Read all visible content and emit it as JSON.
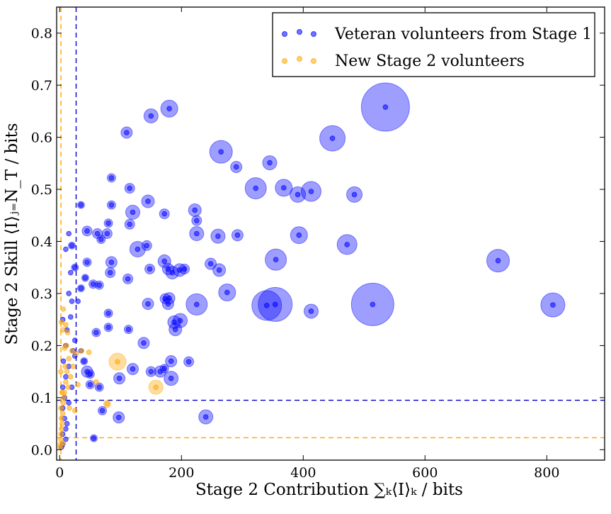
{
  "chart_data": {
    "type": "scatter",
    "title": "",
    "xlabel": "Stage 2 Contribution ∑ₖ⟨I⟩ₖ / bits",
    "ylabel": "Stage 2 Skill ⟨I⟩ⱼ₌N_T / bits",
    "xlim": [
      -5,
      895
    ],
    "ylim": [
      -0.02,
      0.85
    ],
    "xticks": [
      0,
      200,
      400,
      600,
      800
    ],
    "yticks": [
      0.0,
      0.1,
      0.2,
      0.3,
      0.4,
      0.5,
      0.6,
      0.7,
      0.8
    ],
    "xtick_labels": [
      "0",
      "200",
      "400",
      "600",
      "800"
    ],
    "ytick_labels": [
      "0.0",
      "0.1",
      "0.2",
      "0.3",
      "0.4",
      "0.5",
      "0.6",
      "0.7",
      "0.8"
    ],
    "grid": false,
    "legend_position": "top-right",
    "reference_lines": [
      {
        "series": "Veteran volunteers from Stage 1",
        "orientation": "vertical",
        "value": 27,
        "color": "#0000cc"
      },
      {
        "series": "Veteran volunteers from Stage 1",
        "orientation": "horizontal",
        "value": 0.095,
        "color": "#0000cc"
      },
      {
        "series": "New Stage 2 volunteers",
        "orientation": "vertical",
        "value": 2,
        "color": "#ffa500"
      },
      {
        "series": "New Stage 2 volunteers",
        "orientation": "horizontal",
        "value": 0.023,
        "color": "#ffa500"
      }
    ],
    "series": [
      {
        "name": "Veteran volunteers from Stage 1",
        "color": "#0000ff",
        "marker": "circle-with-size-halo",
        "points": [
          [
            535,
            0.658
          ],
          [
            180,
            0.655
          ],
          [
            150,
            0.641
          ],
          [
            110,
            0.609
          ],
          [
            448,
            0.598
          ],
          [
            265,
            0.572
          ],
          [
            290,
            0.543
          ],
          [
            345,
            0.551
          ],
          [
            85,
            0.522
          ],
          [
            322,
            0.502
          ],
          [
            368,
            0.503
          ],
          [
            391,
            0.49
          ],
          [
            413,
            0.496
          ],
          [
            484,
            0.49
          ],
          [
            115,
            0.502
          ],
          [
            120,
            0.456
          ],
          [
            145,
            0.477
          ],
          [
            172,
            0.453
          ],
          [
            222,
            0.46
          ],
          [
            225,
            0.44
          ],
          [
            35,
            0.47
          ],
          [
            85,
            0.47
          ],
          [
            80,
            0.435
          ],
          [
            115,
            0.433
          ],
          [
            45,
            0.42
          ],
          [
            62,
            0.415
          ],
          [
            78,
            0.415
          ],
          [
            68,
            0.404
          ],
          [
            225,
            0.415
          ],
          [
            260,
            0.41
          ],
          [
            292,
            0.412
          ],
          [
            393,
            0.412
          ],
          [
            472,
            0.394
          ],
          [
            128,
            0.385
          ],
          [
            143,
            0.392
          ],
          [
            15,
            0.415
          ],
          [
            20,
            0.392
          ],
          [
            10,
            0.385
          ],
          [
            355,
            0.365
          ],
          [
            720,
            0.363
          ],
          [
            172,
            0.362
          ],
          [
            248,
            0.357
          ],
          [
            262,
            0.345
          ],
          [
            85,
            0.36
          ],
          [
            45,
            0.36
          ],
          [
            148,
            0.347
          ],
          [
            178,
            0.347
          ],
          [
            185,
            0.34
          ],
          [
            197,
            0.345
          ],
          [
            205,
            0.347
          ],
          [
            25,
            0.35
          ],
          [
            83,
            0.34
          ],
          [
            112,
            0.328
          ],
          [
            18,
            0.34
          ],
          [
            275,
            0.302
          ],
          [
            65,
            0.316
          ],
          [
            42,
            0.33
          ],
          [
            55,
            0.318
          ],
          [
            35,
            0.31
          ],
          [
            15,
            0.3
          ],
          [
            180,
            0.291
          ],
          [
            178,
            0.28
          ],
          [
            173,
            0.29
          ],
          [
            145,
            0.28
          ],
          [
            225,
            0.279
          ],
          [
            340,
            0.277
          ],
          [
            354,
            0.279
          ],
          [
            514,
            0.279
          ],
          [
            810,
            0.278
          ],
          [
            413,
            0.266
          ],
          [
            30,
            0.285
          ],
          [
            20,
            0.285
          ],
          [
            80,
            0.262
          ],
          [
            198,
            0.248
          ],
          [
            188,
            0.245
          ],
          [
            190,
            0.231
          ],
          [
            80,
            0.235
          ],
          [
            113,
            0.231
          ],
          [
            60,
            0.225
          ],
          [
            18,
            0.255
          ],
          [
            25,
            0.21
          ],
          [
            138,
            0.205
          ],
          [
            212,
            0.169
          ],
          [
            183,
            0.17
          ],
          [
            172,
            0.156
          ],
          [
            165,
            0.15
          ],
          [
            150,
            0.15
          ],
          [
            183,
            0.137
          ],
          [
            120,
            0.155
          ],
          [
            98,
            0.137
          ],
          [
            50,
            0.145
          ],
          [
            50,
            0.125
          ],
          [
            40,
            0.17
          ],
          [
            45,
            0.15
          ],
          [
            65,
            0.12
          ],
          [
            35,
            0.19
          ],
          [
            10,
            0.2
          ],
          [
            15,
            0.16
          ],
          [
            25,
            0.18
          ],
          [
            10,
            0.14
          ],
          [
            5,
            0.12
          ],
          [
            20,
            0.12
          ],
          [
            8,
            0.1
          ],
          [
            15,
            0.09
          ],
          [
            70,
            0.075
          ],
          [
            97,
            0.062
          ],
          [
            240,
            0.063
          ],
          [
            56,
            0.022
          ],
          [
            5,
            0.08
          ],
          [
            8,
            0.06
          ],
          [
            12,
            0.05
          ],
          [
            10,
            0.04
          ],
          [
            5,
            0.03
          ],
          [
            10,
            0.02
          ],
          [
            5,
            0.01
          ],
          [
            3,
            0.005
          ],
          [
            12,
            0.23
          ],
          [
            5,
            0.25
          ],
          [
            22,
            0.19
          ],
          [
            6,
            0.17
          ]
        ],
        "sizes": [
          34,
          12,
          10,
          8,
          18,
          16,
          8,
          10,
          6,
          15,
          12,
          11,
          14,
          11,
          7,
          10,
          9,
          7,
          9,
          7,
          5,
          6,
          6,
          7,
          7,
          7,
          7,
          6,
          10,
          10,
          8,
          12,
          14,
          11,
          7,
          4,
          5,
          4,
          15,
          16,
          9,
          8,
          9,
          8,
          6,
          7,
          8,
          9,
          9,
          7,
          5,
          7,
          7,
          4,
          12,
          6,
          5,
          6,
          5,
          4,
          8,
          8,
          7,
          8,
          15,
          21,
          24,
          30,
          17,
          10,
          4,
          4,
          6,
          10,
          9,
          9,
          6,
          6,
          6,
          4,
          4,
          8,
          7,
          8,
          6,
          8,
          7,
          10,
          8,
          8,
          6,
          6,
          5,
          8,
          6,
          4,
          4,
          4,
          4,
          4,
          3,
          4,
          3,
          3,
          6,
          8,
          10,
          5,
          3,
          3,
          3,
          3,
          3,
          3,
          3,
          3,
          4,
          3,
          4,
          3
        ]
      },
      {
        "name": "New Stage 2 volunteers",
        "color": "#ffa500",
        "marker": "circle-with-size-halo",
        "points": [
          [
            95,
            0.169
          ],
          [
            158,
            0.12
          ],
          [
            60,
            0.13
          ],
          [
            78,
            0.088
          ],
          [
            48,
            0.187
          ],
          [
            36,
            0.19
          ],
          [
            27,
            0.185
          ],
          [
            20,
            0.19
          ],
          [
            15,
            0.175
          ],
          [
            12,
            0.15
          ],
          [
            10,
            0.13
          ],
          [
            8,
            0.11
          ],
          [
            6,
            0.09
          ],
          [
            5,
            0.07
          ],
          [
            4,
            0.05
          ],
          [
            3,
            0.04
          ],
          [
            2,
            0.03
          ],
          [
            2,
            0.02
          ],
          [
            1,
            0.01
          ],
          [
            1,
            0.005
          ],
          [
            3,
            0.06
          ],
          [
            7,
            0.1
          ],
          [
            9,
            0.16
          ],
          [
            11,
            0.2
          ],
          [
            13,
            0.225
          ],
          [
            5,
            0.23
          ],
          [
            3,
            0.245
          ],
          [
            6,
            0.27
          ],
          [
            4,
            0.11
          ],
          [
            2,
            0.08
          ],
          [
            16,
            0.08
          ],
          [
            25,
            0.075
          ],
          [
            14,
            0.12
          ],
          [
            18,
            0.14
          ],
          [
            8,
            0.195
          ],
          [
            10,
            0.24
          ],
          [
            2,
            0.15
          ],
          [
            6,
            0.012
          ],
          [
            22,
            0.16
          ],
          [
            30,
            0.125
          ]
        ],
        "sizes": [
          12,
          10,
          4,
          5,
          4,
          3,
          3,
          3,
          3,
          3,
          3,
          3,
          3,
          3,
          3,
          3,
          3,
          3,
          3,
          3,
          3,
          3,
          3,
          3,
          3,
          3,
          3,
          3,
          3,
          3,
          3,
          3,
          3,
          3,
          3,
          3,
          3,
          3,
          3,
          3
        ]
      }
    ]
  }
}
